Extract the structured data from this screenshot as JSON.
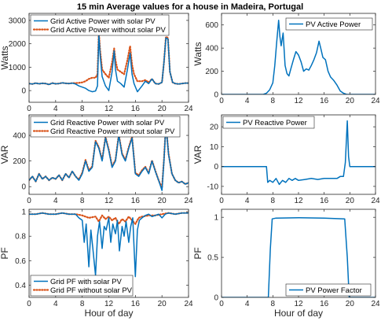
{
  "figure_title": "15 min Average values for a house in Madeira, Portugal",
  "colors": {
    "with_pv": "#0072BD",
    "without_pv": "#D95319",
    "axis": "#262626"
  },
  "chart_data": [
    {
      "id": "grid-active",
      "type": "line",
      "title": "",
      "xlabel": "",
      "ylabel": "Watts",
      "xlim": [
        0,
        24
      ],
      "ylim": [
        -500,
        3300
      ],
      "xticks": [
        0,
        4,
        8,
        12,
        16,
        20,
        24
      ],
      "yticks": [
        0,
        1000,
        2000,
        3000
      ],
      "legend_position": "top-left",
      "series": [
        {
          "name": "Grid Active Power with solar PV",
          "style": "solid",
          "color": "#0072BD",
          "x": [
            0,
            0.5,
            1,
            1.5,
            2,
            2.5,
            3,
            3.5,
            4,
            4.5,
            5,
            5.5,
            6,
            6.5,
            7,
            7.5,
            8,
            8.5,
            9,
            9.5,
            10,
            10.3,
            10.5,
            10.7,
            11,
            11.5,
            12,
            12.5,
            12.8,
            13,
            13.3,
            13.8,
            14.3,
            14.8,
            15.2,
            15.5,
            15.8,
            16.3,
            17,
            17.5,
            18,
            18.5,
            19,
            19.5,
            20,
            20.3,
            20.6,
            20.9,
            21.2,
            21.6,
            22,
            22.5,
            23,
            23.5,
            24
          ],
          "y": [
            300,
            280,
            320,
            290,
            310,
            300,
            260,
            320,
            290,
            300,
            330,
            310,
            300,
            320,
            280,
            200,
            150,
            100,
            0,
            -50,
            -20,
            200,
            2400,
            1500,
            600,
            200,
            0,
            800,
            1700,
            900,
            400,
            300,
            150,
            900,
            1600,
            700,
            300,
            -50,
            200,
            400,
            300,
            500,
            300,
            280,
            350,
            1200,
            2250,
            2200,
            800,
            350,
            300,
            280,
            300,
            320,
            320
          ]
        },
        {
          "name": "Grid Active Power without solar PV",
          "style": "dotted",
          "color": "#D95319",
          "x": [
            0,
            0.5,
            1,
            1.5,
            2,
            2.5,
            3,
            3.5,
            4,
            4.5,
            5,
            5.5,
            6,
            6.5,
            7,
            7.5,
            8,
            8.5,
            9,
            9.5,
            10,
            10.3,
            10.5,
            10.7,
            11,
            11.5,
            12,
            12.5,
            12.8,
            13,
            13.3,
            13.8,
            14.3,
            14.8,
            15.2,
            15.5,
            15.8,
            16.3,
            17,
            17.5,
            18,
            18.5,
            19,
            19.5,
            20,
            20.3,
            20.6,
            20.9,
            21.2,
            21.6,
            22,
            22.5,
            23,
            23.5,
            24
          ],
          "y": [
            300,
            280,
            320,
            290,
            310,
            300,
            260,
            320,
            290,
            300,
            330,
            310,
            300,
            320,
            320,
            330,
            350,
            400,
            500,
            550,
            550,
            700,
            2500,
            1700,
            900,
            700,
            550,
            1200,
            1800,
            1300,
            900,
            800,
            700,
            1300,
            1900,
            1100,
            700,
            400,
            400,
            450,
            350,
            500,
            300,
            280,
            350,
            1200,
            2300,
            2250,
            800,
            350,
            300,
            280,
            300,
            320,
            320
          ]
        }
      ]
    },
    {
      "id": "pv-active",
      "type": "line",
      "title": "",
      "xlabel": "",
      "ylabel": "Watts",
      "xlim": [
        0,
        24
      ],
      "ylim": [
        0,
        700
      ],
      "xticks": [
        0,
        4,
        8,
        12,
        16,
        20,
        24
      ],
      "yticks": [
        0,
        200,
        400,
        600
      ],
      "legend_position": "top-right",
      "series": [
        {
          "name": "PV Active Power",
          "style": "solid",
          "color": "#0072BD",
          "x": [
            0,
            6.5,
            7,
            7.5,
            8,
            8.3,
            8.6,
            8.9,
            9.1,
            9.3,
            9.6,
            9.9,
            10.2,
            10.5,
            10.8,
            11.2,
            11.6,
            12,
            12.4,
            12.8,
            13.2,
            13.6,
            14,
            14.4,
            14.8,
            15.2,
            15.5,
            15.8,
            16.2,
            16.6,
            17,
            17.5,
            18,
            18.5,
            19,
            19.5,
            20,
            24
          ],
          "y": [
            0,
            0,
            10,
            40,
            100,
            250,
            450,
            640,
            500,
            420,
            530,
            250,
            180,
            160,
            220,
            300,
            370,
            340,
            280,
            200,
            220,
            210,
            250,
            300,
            360,
            460,
            390,
            320,
            300,
            200,
            150,
            120,
            80,
            30,
            10,
            0,
            0,
            0
          ]
        }
      ]
    },
    {
      "id": "grid-reactive",
      "type": "line",
      "title": "",
      "xlabel": "",
      "ylabel": "VAR",
      "xlim": [
        0,
        24
      ],
      "ylim": [
        -60,
        560
      ],
      "xticks": [
        0,
        4,
        8,
        12,
        16,
        20,
        24
      ],
      "yticks": [
        0,
        200,
        400
      ],
      "legend_position": "top-left",
      "series": [
        {
          "name": "Grid Reactive Power with solar PV",
          "style": "solid",
          "color": "#0072BD",
          "x": [
            0,
            0.5,
            1,
            1.5,
            2,
            2.5,
            3,
            3.5,
            4,
            4.5,
            5,
            5.5,
            6,
            6.5,
            7,
            7.5,
            8,
            8.5,
            9,
            9.5,
            10,
            10.5,
            11,
            11.5,
            12,
            12.5,
            13,
            13.5,
            14,
            14.5,
            15,
            15.5,
            16,
            16.5,
            17,
            17.5,
            18,
            18.5,
            19,
            19.5,
            20,
            20.3,
            20.6,
            21,
            21.5,
            22,
            22.5,
            23,
            23.5,
            24
          ],
          "y": [
            50,
            80,
            40,
            100,
            60,
            80,
            50,
            70,
            60,
            90,
            50,
            100,
            70,
            120,
            80,
            50,
            100,
            200,
            120,
            150,
            350,
            300,
            200,
            380,
            280,
            150,
            200,
            400,
            250,
            200,
            300,
            380,
            100,
            80,
            120,
            150,
            100,
            200,
            120,
            50,
            -30,
            200,
            480,
            250,
            100,
            50,
            30,
            40,
            20,
            30
          ]
        },
        {
          "name": "Grid Reactive Power without solar PV",
          "style": "dotted",
          "color": "#D95319",
          "x": [
            0,
            0.5,
            1,
            1.5,
            2,
            2.5,
            3,
            3.5,
            4,
            4.5,
            5,
            5.5,
            6,
            6.5,
            7,
            7.5,
            8,
            8.5,
            9,
            9.5,
            10,
            10.5,
            11,
            11.5,
            12,
            12.5,
            13,
            13.5,
            14,
            14.5,
            15,
            15.5,
            16,
            16.5,
            17,
            17.5,
            18,
            18.5,
            19,
            19.5,
            20,
            20.3,
            20.6,
            21,
            21.5,
            22,
            22.5,
            23,
            23.5,
            24
          ],
          "y": [
            50,
            80,
            40,
            100,
            60,
            80,
            50,
            70,
            60,
            90,
            50,
            100,
            70,
            120,
            80,
            55,
            108,
            208,
            128,
            158,
            358,
            308,
            208,
            388,
            288,
            158,
            208,
            408,
            258,
            208,
            308,
            388,
            108,
            88,
            128,
            155,
            105,
            205,
            125,
            50,
            -10,
            210,
            490,
            255,
            100,
            50,
            30,
            40,
            20,
            30
          ]
        }
      ]
    },
    {
      "id": "pv-reactive",
      "type": "line",
      "title": "",
      "xlabel": "",
      "ylabel": "VAR",
      "xlim": [
        0,
        24
      ],
      "ylim": [
        -14,
        26
      ],
      "xticks": [
        0,
        4,
        8,
        12,
        16,
        20,
        24
      ],
      "yticks": [
        -10,
        0,
        10,
        20
      ],
      "legend_position": "top-left",
      "series": [
        {
          "name": "PV Reactive Power",
          "style": "solid",
          "color": "#0072BD",
          "x": [
            0,
            7,
            7.2,
            7.5,
            8,
            8.5,
            9,
            9.5,
            10,
            10.5,
            11,
            11.5,
            12,
            13,
            14,
            15,
            16,
            17,
            18,
            18.5,
            19,
            19.3,
            19.6,
            19.8,
            20,
            24
          ],
          "y": [
            0,
            0,
            -8,
            -7,
            -8,
            -6,
            -9,
            -7,
            -8,
            -6,
            -7,
            -6,
            -7,
            -6.5,
            -6,
            -6.5,
            -6,
            -6,
            -6,
            -5,
            -5,
            2,
            23,
            5,
            0,
            0
          ]
        }
      ]
    },
    {
      "id": "grid-pf",
      "type": "line",
      "title": "",
      "xlabel": "Hour of day",
      "ylabel": "PF",
      "xlim": [
        0,
        24
      ],
      "ylim": [
        0.3,
        1.02
      ],
      "xticks": [
        0,
        4,
        8,
        12,
        16,
        20,
        24
      ],
      "yticks": [
        0.4,
        0.6,
        0.8,
        1
      ],
      "legend_position": "bottom-left",
      "series": [
        {
          "name": "Grid PF with solar PV",
          "style": "solid",
          "color": "#0072BD",
          "x": [
            0,
            1,
            2,
            3,
            4,
            5,
            6,
            7,
            7.5,
            8,
            8.3,
            8.6,
            9,
            9.3,
            9.6,
            10,
            10.3,
            10.6,
            11,
            11.3,
            11.6,
            12,
            12.3,
            12.6,
            13,
            13.3,
            13.6,
            14,
            14.3,
            14.6,
            15,
            15.3,
            15.6,
            16,
            16.3,
            16.6,
            17,
            17.5,
            18,
            18.5,
            19,
            19.5,
            20,
            20.5,
            21,
            22,
            23,
            24
          ],
          "y": [
            0.98,
            0.98,
            0.99,
            0.98,
            0.98,
            0.99,
            0.98,
            0.98,
            0.95,
            0.93,
            0.75,
            0.9,
            0.55,
            0.85,
            0.7,
            0.48,
            0.8,
            0.92,
            0.7,
            0.88,
            0.85,
            0.95,
            0.75,
            0.9,
            0.82,
            0.93,
            0.68,
            0.88,
            0.8,
            0.92,
            0.75,
            0.88,
            0.95,
            0.47,
            0.85,
            0.93,
            0.95,
            0.97,
            0.98,
            0.96,
            0.97,
            0.98,
            0.95,
            0.98,
            0.99,
            0.98,
            0.99,
            0.99
          ]
        },
        {
          "name": "Grid PF without solar PV",
          "style": "dotted",
          "color": "#D95319",
          "x": [
            0,
            1,
            2,
            3,
            4,
            5,
            6,
            7,
            8,
            9,
            10,
            10.5,
            11,
            11.5,
            12,
            12.5,
            13,
            13.5,
            14,
            14.5,
            15,
            15.5,
            16,
            16.5,
            17,
            18,
            19,
            20,
            21,
            22,
            23,
            24
          ],
          "y": [
            0.98,
            0.98,
            0.99,
            0.98,
            0.98,
            0.99,
            0.98,
            0.98,
            0.97,
            0.95,
            0.96,
            0.92,
            0.97,
            0.94,
            0.96,
            0.93,
            0.95,
            0.9,
            0.94,
            0.92,
            0.96,
            0.93,
            0.9,
            0.95,
            0.96,
            0.97,
            0.97,
            0.98,
            0.99,
            0.98,
            0.99,
            0.99
          ]
        }
      ]
    },
    {
      "id": "pv-pf",
      "type": "line",
      "title": "",
      "xlabel": "Hour of day",
      "ylabel": "PF",
      "xlim": [
        0,
        24
      ],
      "ylim": [
        0,
        1.1
      ],
      "xticks": [
        0,
        4,
        8,
        12,
        16,
        20,
        24
      ],
      "yticks": [
        0,
        0.5,
        1
      ],
      "legend_position": "bottom-right",
      "series": [
        {
          "name": "PV Power Factor",
          "style": "solid",
          "color": "#0072BD",
          "x": [
            0,
            7.3,
            7.6,
            7.9,
            8.5,
            12,
            16,
            19.2,
            19.6,
            19.9,
            24
          ],
          "y": [
            0,
            0,
            0.6,
            0.98,
            0.99,
            0.995,
            0.99,
            0.98,
            0.5,
            0,
            0
          ]
        }
      ]
    }
  ]
}
